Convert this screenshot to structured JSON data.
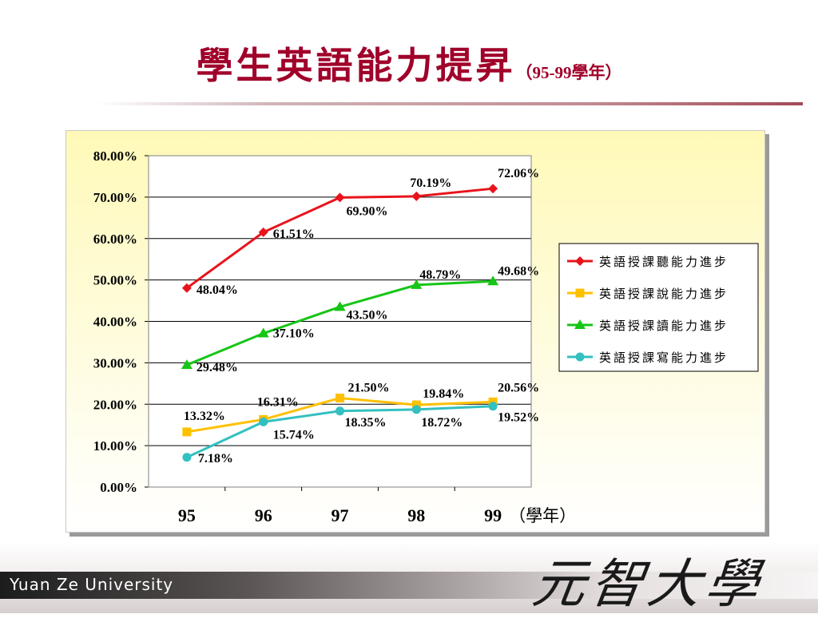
{
  "slide": {
    "title": "學生英語能力提昇",
    "subtitle": "（95-99學年）",
    "footer_text": "Yuan Ze University",
    "logo_text": "元智大學"
  },
  "chart_data": {
    "type": "line",
    "categories": [
      "95",
      "96",
      "97",
      "98",
      "99"
    ],
    "xlabel": "（學年）",
    "ylabel": "",
    "ylim": [
      0,
      80
    ],
    "yticks": [
      "0.00%",
      "10.00%",
      "20.00%",
      "30.00%",
      "40.00%",
      "50.00%",
      "60.00%",
      "70.00%",
      "80.00%"
    ],
    "grid": true,
    "legend_position": "right",
    "series": [
      {
        "name": "英語授課聽能力進步",
        "color": "#e8141c",
        "marker": "diamond",
        "values": [
          48.04,
          61.51,
          69.9,
          70.19,
          72.06
        ],
        "labels": [
          "48.04%",
          "61.51%",
          "69.90%",
          "70.19%",
          "72.06%"
        ]
      },
      {
        "name": "英語授課說能力進步",
        "color": "#ffc000",
        "marker": "square",
        "values": [
          13.32,
          16.31,
          21.5,
          19.84,
          20.56
        ],
        "labels": [
          "13.32%",
          "16.31%",
          "21.50%",
          "19.84%",
          "20.56%"
        ]
      },
      {
        "name": "英語授課讀能力進步",
        "color": "#16c516",
        "marker": "triangle",
        "values": [
          29.48,
          37.1,
          43.5,
          48.79,
          49.68
        ],
        "labels": [
          "29.48%",
          "37.10%",
          "43.50%",
          "48.79%",
          "49.68%"
        ]
      },
      {
        "name": "英語授課寫能力進步",
        "color": "#33c0c0",
        "marker": "circle",
        "values": [
          7.18,
          15.74,
          18.35,
          18.72,
          19.52
        ],
        "labels": [
          "7.18%",
          "15.74%",
          "18.35%",
          "18.72%",
          "19.52%"
        ]
      }
    ]
  }
}
